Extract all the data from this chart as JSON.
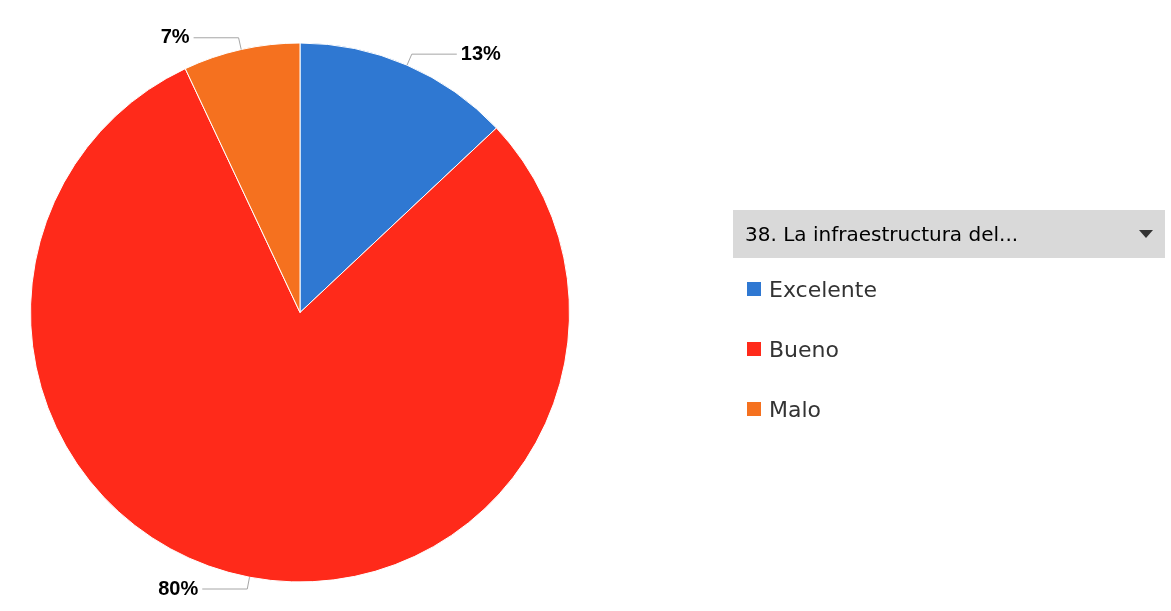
{
  "chart_data": {
    "type": "pie",
    "legend_title": "38. La infraestructura del...",
    "categories": [
      "Excelente",
      "Bueno",
      "Malo"
    ],
    "values": [
      13,
      80,
      7
    ],
    "colors": [
      "#2f78d2",
      "#ff2a1a",
      "#f5711f"
    ],
    "value_labels": [
      "13%",
      "80%",
      "7%"
    ],
    "legend": "right"
  }
}
